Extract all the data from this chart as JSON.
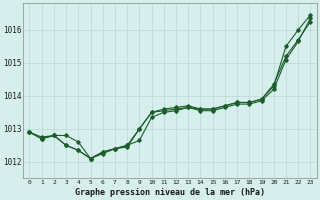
{
  "title": "Graphe pression niveau de la mer (hPa)",
  "xlabel_ticks": [
    "0",
    "1",
    "2",
    "3",
    "4",
    "5",
    "6",
    "7",
    "8",
    "9",
    "10",
    "11",
    "12",
    "13",
    "14",
    "15",
    "16",
    "17",
    "18",
    "19",
    "20",
    "21",
    "22",
    "23"
  ],
  "ylim": [
    1011.5,
    1016.8
  ],
  "yticks": [
    1012,
    1013,
    1014,
    1015,
    1016
  ],
  "bg_color": "#d6efec",
  "grid_color": "#b8d8d4",
  "line_color": "#1a5c2a",
  "line1": [
    1012.9,
    1012.75,
    1012.8,
    1012.8,
    1012.6,
    1012.1,
    1012.25,
    1012.4,
    1012.45,
    1013.0,
    1013.5,
    1013.6,
    1013.65,
    1013.7,
    1013.6,
    1013.6,
    1013.7,
    1013.8,
    1013.8,
    1013.9,
    1014.35,
    1015.2,
    1015.7,
    1016.25
  ],
  "line2": [
    1012.9,
    1012.7,
    1012.8,
    1012.5,
    1012.35,
    1012.1,
    1012.3,
    1012.4,
    1012.5,
    1013.0,
    1013.5,
    1013.55,
    1013.6,
    1013.65,
    1013.6,
    1013.6,
    1013.7,
    1013.8,
    1013.8,
    1013.9,
    1014.3,
    1015.5,
    1016.0,
    1016.45
  ],
  "line3": [
    1012.9,
    1012.7,
    1012.8,
    1012.5,
    1012.35,
    1012.1,
    1012.3,
    1012.4,
    1012.5,
    1012.65,
    1013.35,
    1013.5,
    1013.55,
    1013.65,
    1013.55,
    1013.55,
    1013.65,
    1013.75,
    1013.75,
    1013.85,
    1014.2,
    1015.1,
    1015.65,
    1016.35
  ],
  "figsize": [
    3.2,
    2.0
  ],
  "dpi": 100
}
